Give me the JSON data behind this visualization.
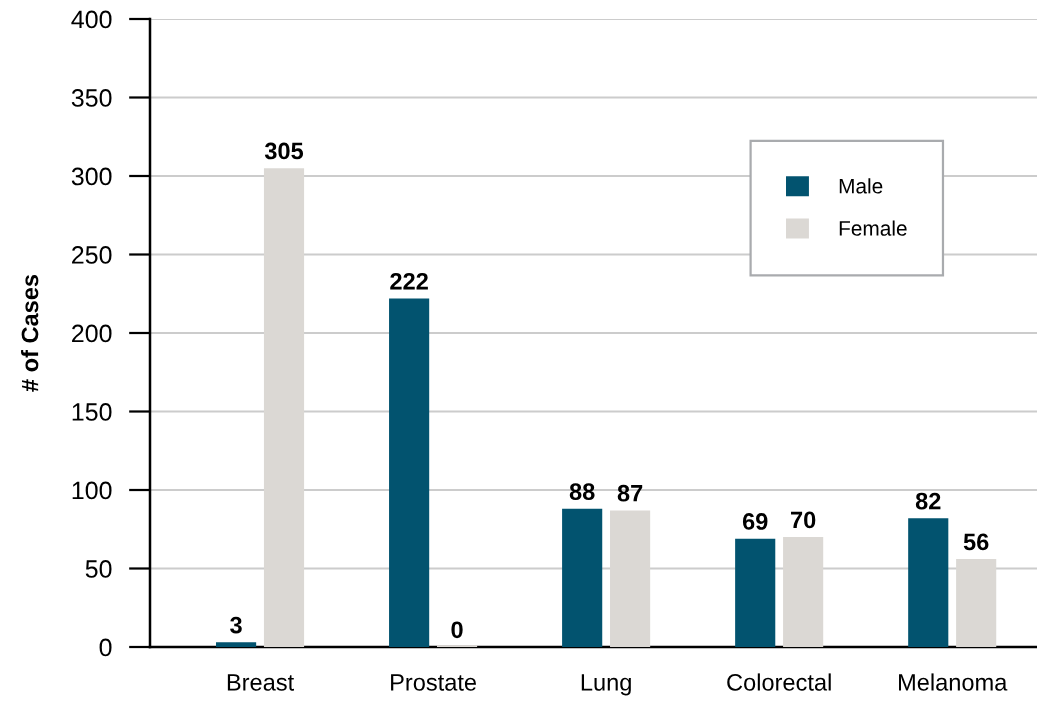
{
  "chart_data": {
    "type": "bar",
    "ylabel": "# of Cases",
    "categories": [
      "Breast",
      "Prostate",
      "Lung",
      "Colorectal",
      "Melanoma"
    ],
    "series": [
      {
        "name": "Male",
        "color": "#02536f",
        "values": [
          3,
          222,
          88,
          69,
          82
        ]
      },
      {
        "name": "Female",
        "color": "#dbd8d4",
        "values": [
          305,
          0,
          87,
          70,
          56
        ]
      }
    ],
    "ylim": [
      0,
      400
    ],
    "yticks": [
      0,
      50,
      100,
      150,
      200,
      250,
      300,
      350,
      400
    ],
    "grid": "y",
    "legend": "top right",
    "data_labels": true
  }
}
